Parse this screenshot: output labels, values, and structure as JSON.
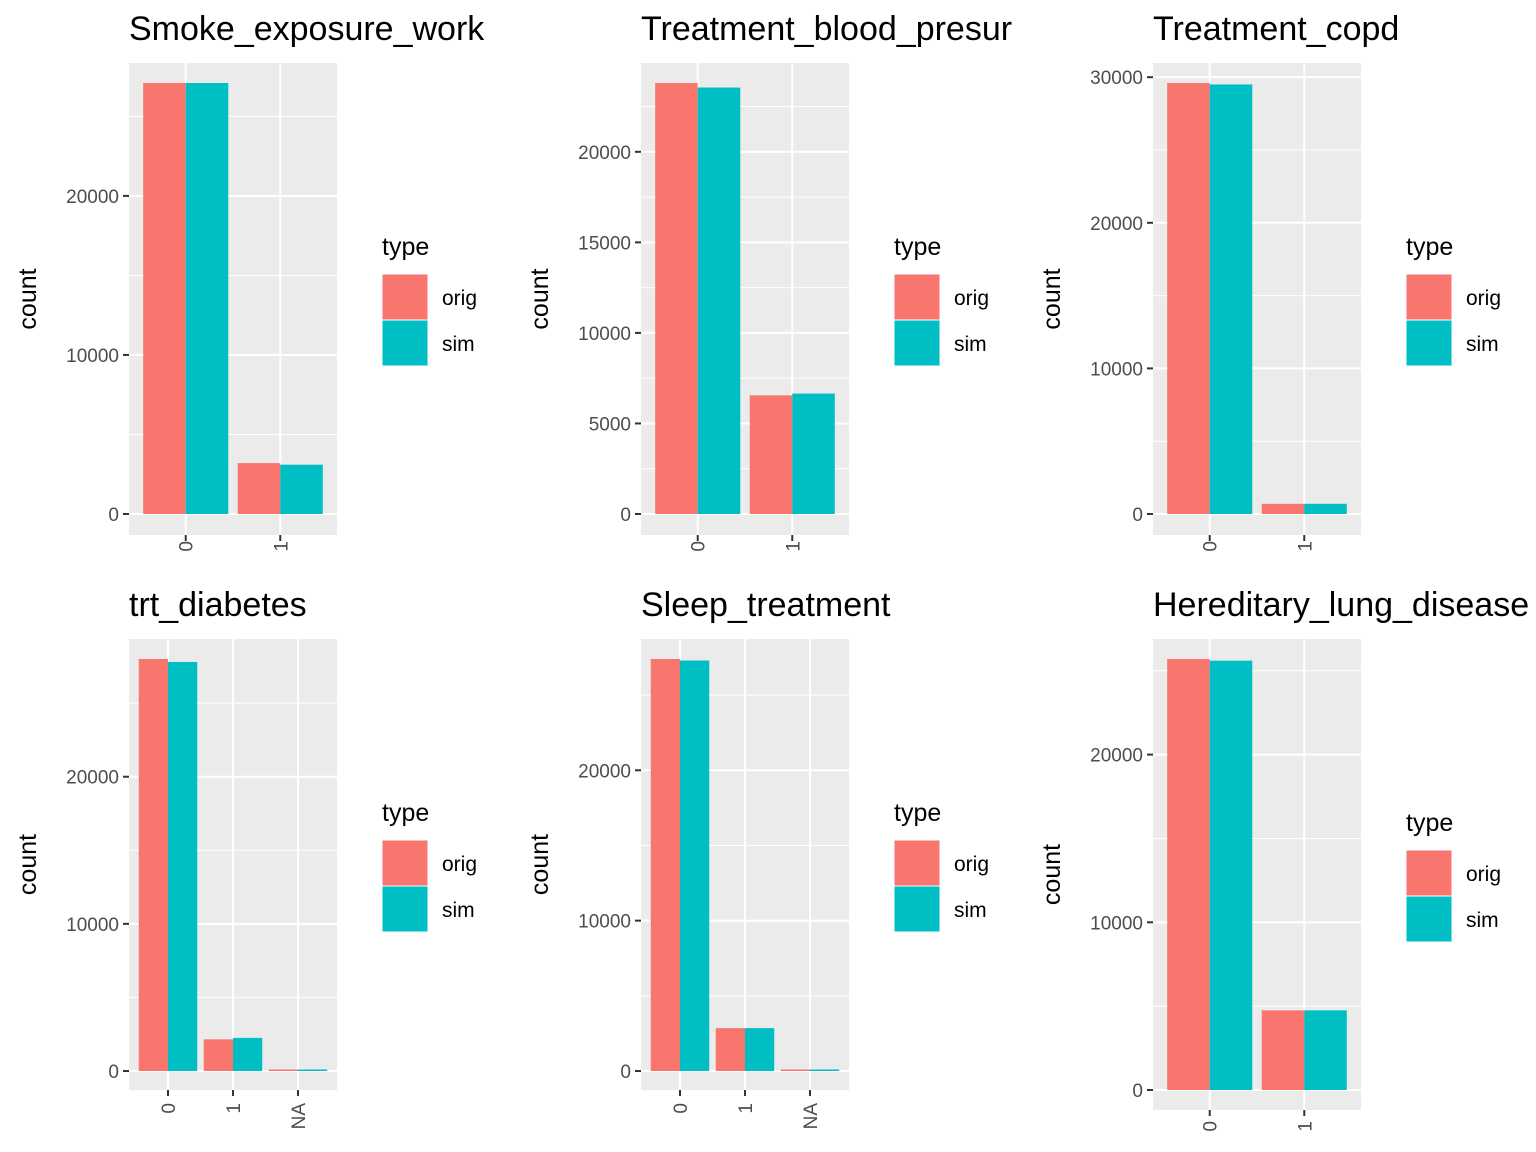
{
  "colors": {
    "orig": "#F8766D",
    "sim": "#00BFC4",
    "panel_bg": "#EBEBEB",
    "grid": "#FFFFFF",
    "axis_text": "#4D4D4D",
    "text": "#000000"
  },
  "chart_data": [
    {
      "type": "bar",
      "title": "Smoke_exposure_work",
      "xlabel": "",
      "ylabel": "count",
      "categories": [
        "0",
        "1"
      ],
      "series": [
        {
          "name": "orig",
          "values": [
            27100,
            3200
          ]
        },
        {
          "name": "sim",
          "values": [
            27100,
            3100
          ]
        }
      ],
      "ylim": [
        0,
        28500
      ],
      "yticks": [
        0,
        10000,
        20000
      ],
      "ytick_labels": [
        "0",
        "10000",
        "20000"
      ],
      "legend": {
        "title": "type",
        "entries": [
          "orig",
          "sim"
        ],
        "position": "right"
      },
      "grid": true
    },
    {
      "type": "bar",
      "title": "Treatment_blood_presur",
      "xlabel": "",
      "ylabel": "count",
      "categories": [
        "0",
        "1"
      ],
      "series": [
        {
          "name": "orig",
          "values": [
            23800,
            6550
          ]
        },
        {
          "name": "sim",
          "values": [
            23550,
            6650
          ]
        }
      ],
      "ylim": [
        0,
        25100
      ],
      "yticks": [
        0,
        5000,
        10000,
        15000,
        20000
      ],
      "ytick_labels": [
        "0",
        "5000",
        "10000",
        "15000",
        "20000"
      ],
      "legend": {
        "title": "type",
        "entries": [
          "orig",
          "sim"
        ],
        "position": "right"
      },
      "grid": true
    },
    {
      "type": "bar",
      "title": "Treatment_copd",
      "xlabel": "",
      "ylabel": "count",
      "categories": [
        "0",
        "1"
      ],
      "series": [
        {
          "name": "orig",
          "values": [
            29600,
            700
          ]
        },
        {
          "name": "sim",
          "values": [
            29500,
            700
          ]
        }
      ],
      "ylim": [
        0,
        31400
      ],
      "yticks": [
        0,
        10000,
        20000,
        30000
      ],
      "ytick_labels": [
        "0",
        "10000",
        "20000",
        "30000"
      ],
      "legend": {
        "title": "type",
        "entries": [
          "orig",
          "sim"
        ],
        "position": "right"
      },
      "grid": true
    },
    {
      "type": "bar",
      "title": "trt_diabetes",
      "xlabel": "",
      "ylabel": "count",
      "categories": [
        "0",
        "1",
        "NA"
      ],
      "series": [
        {
          "name": "orig",
          "values": [
            28000,
            2150,
            100
          ]
        },
        {
          "name": "sim",
          "values": [
            27800,
            2250,
            100
          ]
        }
      ],
      "ylim": [
        0,
        29500
      ],
      "yticks": [
        0,
        10000,
        20000
      ],
      "ytick_labels": [
        "0",
        "10000",
        "20000"
      ],
      "legend": {
        "title": "type",
        "entries": [
          "orig",
          "sim"
        ],
        "position": "right"
      },
      "grid": true
    },
    {
      "type": "bar",
      "title": "Sleep_treatment",
      "xlabel": "",
      "ylabel": "count",
      "categories": [
        "0",
        "1",
        "NA"
      ],
      "series": [
        {
          "name": "orig",
          "values": [
            27400,
            2850,
            100
          ]
        },
        {
          "name": "sim",
          "values": [
            27300,
            2850,
            100
          ]
        }
      ],
      "ylim": [
        0,
        28750
      ],
      "yticks": [
        0,
        10000,
        20000
      ],
      "ytick_labels": [
        "0",
        "10000",
        "20000"
      ],
      "legend": {
        "title": "type",
        "entries": [
          "orig",
          "sim"
        ],
        "position": "right"
      },
      "grid": true
    },
    {
      "type": "bar",
      "title": "Hereditary_lung_disease",
      "xlabel": "",
      "ylabel": "count",
      "categories": [
        "0",
        "1"
      ],
      "series": [
        {
          "name": "orig",
          "values": [
            25700,
            4750
          ]
        },
        {
          "name": "sim",
          "values": [
            25600,
            4750
          ]
        }
      ],
      "ylim": [
        0,
        26900
      ],
      "yticks": [
        0,
        10000,
        20000
      ],
      "ytick_labels": [
        "0",
        "10000",
        "20000"
      ],
      "legend": {
        "title": "type",
        "entries": [
          "orig",
          "sim"
        ],
        "position": "right"
      },
      "grid": true
    }
  ]
}
